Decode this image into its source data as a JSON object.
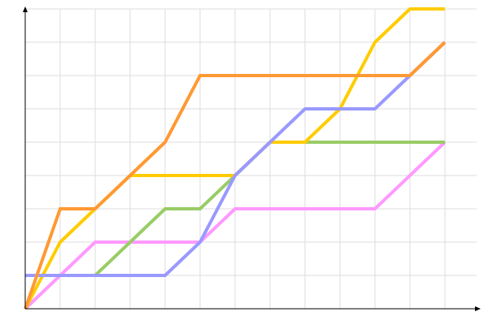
{
  "chart_data": {
    "type": "line",
    "title": "",
    "xlabel": "",
    "ylabel": "",
    "xlim": [
      0,
      12
    ],
    "ylim": [
      0,
      9
    ],
    "grid": true,
    "legend": "none",
    "series": [
      {
        "color": "#ff99ff",
        "points": [
          [
            0,
            0
          ],
          [
            1,
            1
          ],
          [
            2,
            2
          ],
          [
            5,
            2
          ],
          [
            6,
            3
          ],
          [
            10,
            3
          ],
          [
            12,
            5
          ]
        ]
      },
      {
        "color": "#99cc66",
        "points": [
          [
            0,
            1
          ],
          [
            2,
            1
          ],
          [
            3,
            2
          ],
          [
            4,
            3
          ],
          [
            5,
            3
          ],
          [
            6,
            4
          ],
          [
            7,
            5
          ],
          [
            12,
            5
          ]
        ]
      },
      {
        "color": "#ffcc00",
        "points": [
          [
            0,
            0
          ],
          [
            1,
            2
          ],
          [
            2,
            3
          ],
          [
            3,
            4
          ],
          [
            6,
            4
          ],
          [
            7,
            5
          ],
          [
            8,
            5
          ],
          [
            9,
            6
          ],
          [
            10,
            8
          ],
          [
            11,
            9
          ],
          [
            12,
            9
          ]
        ]
      },
      {
        "color": "#9999ff",
        "points": [
          [
            0,
            1
          ],
          [
            4,
            1
          ],
          [
            5,
            2
          ],
          [
            6,
            4
          ],
          [
            7,
            5
          ],
          [
            8,
            6
          ],
          [
            10,
            6
          ],
          [
            11,
            7
          ],
          [
            12,
            8
          ]
        ]
      },
      {
        "color": "#ff9933",
        "points": [
          [
            0,
            0
          ],
          [
            1,
            3
          ],
          [
            2,
            3
          ],
          [
            3,
            4
          ],
          [
            4,
            5
          ],
          [
            5,
            7
          ],
          [
            11,
            7
          ],
          [
            12,
            8
          ]
        ]
      }
    ]
  }
}
